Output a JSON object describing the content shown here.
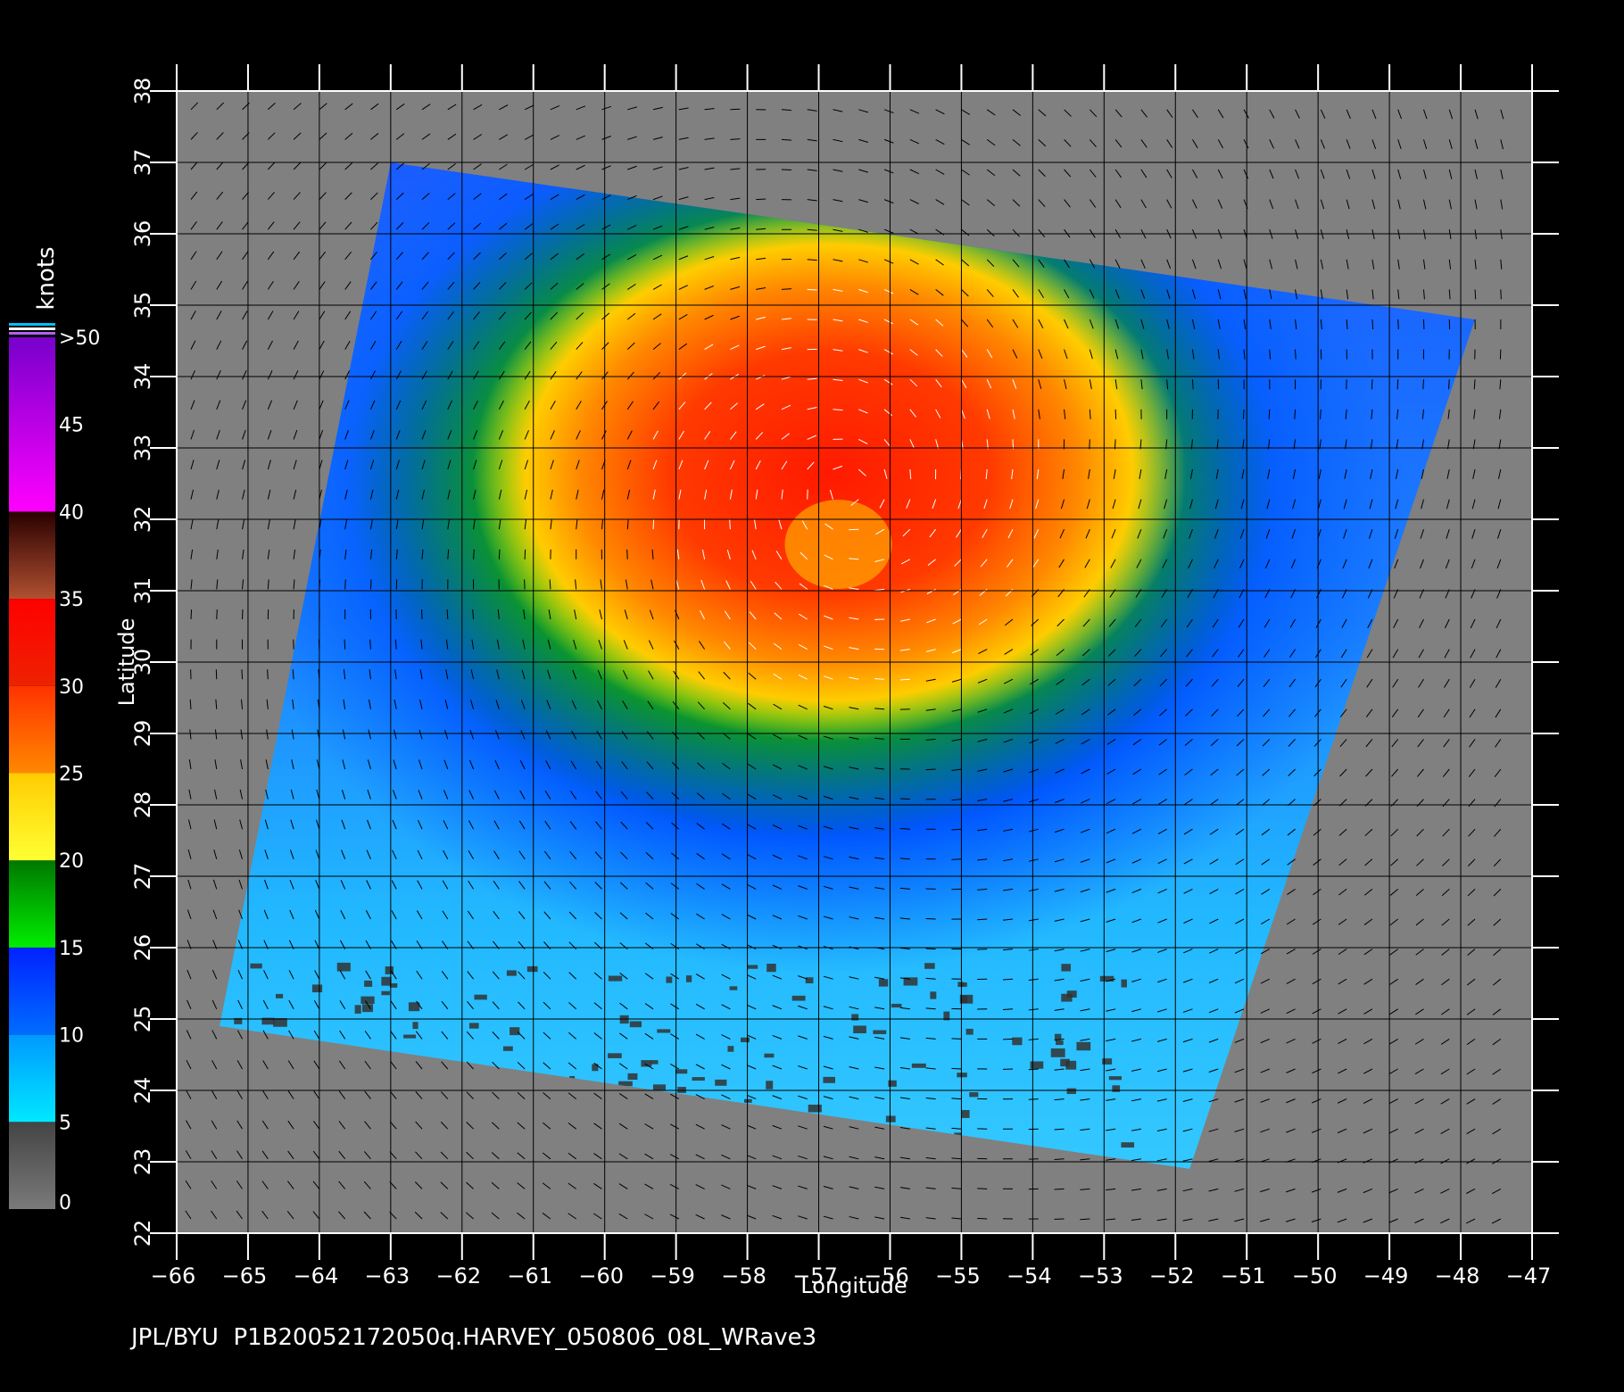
{
  "map": {
    "lon_range": [
      -66,
      -47
    ],
    "lat_range": [
      22,
      38
    ],
    "lon_ticks": [
      -66,
      -65,
      -64,
      -63,
      -62,
      -61,
      -60,
      -59,
      -58,
      -57,
      -56,
      -55,
      -54,
      -53,
      -52,
      -51,
      -50,
      -49,
      -48,
      -47
    ],
    "lat_ticks": [
      22,
      23,
      24,
      25,
      26,
      27,
      28,
      29,
      30,
      31,
      32,
      33,
      34,
      35,
      36,
      37,
      38
    ],
    "lon_tick_labels": [
      "−66",
      "−65",
      "−64",
      "−63",
      "−62",
      "−61",
      "−60",
      "−59",
      "−58",
      "−57",
      "−56",
      "−55",
      "−54",
      "−53",
      "−52",
      "−51",
      "−50",
      "−49",
      "−48",
      "−47"
    ],
    "lat_tick_labels": [
      "22",
      "23",
      "24",
      "25",
      "26",
      "27",
      "28",
      "29",
      "30",
      "31",
      "32",
      "33",
      "34",
      "35",
      "36",
      "37",
      "38"
    ],
    "xlabel": "Longitude",
    "ylabel": "Latitude",
    "grid": true,
    "swath_corners_lonlat": [
      [
        -63.0,
        37.0
      ],
      [
        -47.8,
        34.8
      ],
      [
        -51.8,
        22.9
      ],
      [
        -65.4,
        24.9
      ]
    ],
    "storm_center_lonlat": [
      -56.6,
      32.4
    ],
    "no_data_color": "#808080",
    "background_color": "#000000"
  },
  "colorbar": {
    "unit_label": "knots",
    "tick_labels": [
      "0",
      "5",
      "10",
      "15",
      "20",
      "25",
      "30",
      "35",
      "40",
      "45",
      ">50"
    ],
    "bands": [
      {
        "from": 0,
        "to": 5,
        "top": "#444444",
        "bottom": "#7a7a7a"
      },
      {
        "from": 5,
        "to": 10,
        "top": "#0099ff",
        "bottom": "#00e8ff"
      },
      {
        "from": 10,
        "to": 15,
        "top": "#0022ff",
        "bottom": "#006cff"
      },
      {
        "from": 15,
        "to": 20,
        "top": "#007700",
        "bottom": "#00ee00"
      },
      {
        "from": 20,
        "to": 25,
        "top": "#ffcc00",
        "bottom": "#ffff33"
      },
      {
        "from": 25,
        "to": 30,
        "top": "#ff3300",
        "bottom": "#ff8800"
      },
      {
        "from": 30,
        "to": 35,
        "top": "#ff0000",
        "bottom": "#ee2200"
      },
      {
        "from": 35,
        "to": 40,
        "top": "#2a0000",
        "bottom": "#b05030"
      },
      {
        "from": 40,
        "to": 50,
        "top": "#7700cc",
        "bottom": "#ff00ff"
      }
    ]
  },
  "caption": "JPL/BYU  P1B20052172050q.HARVEY_050806_08L_WRave3"
}
